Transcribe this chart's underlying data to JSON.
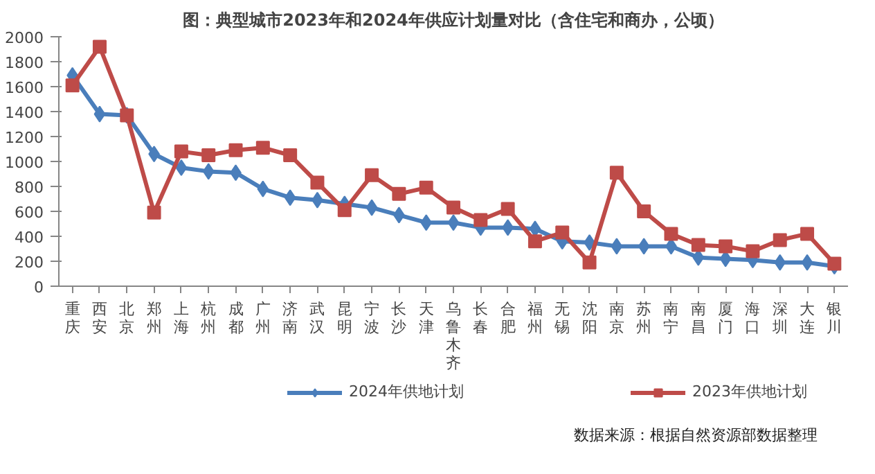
{
  "chart_data": {
    "type": "line",
    "title": "图：典型城市2023年和2024年供应计划量对比（含住宅和商办，公顷）",
    "categories": [
      "重庆",
      "西安",
      "北京",
      "郑州",
      "上海",
      "杭州",
      "成都",
      "广州",
      "济南",
      "武汉",
      "昆明",
      "宁波",
      "长沙",
      "天津",
      "乌鲁木齐",
      "长春",
      "合肥",
      "福州",
      "无锡",
      "沈阳",
      "南京",
      "苏州",
      "南宁",
      "南昌",
      "厦门",
      "海口",
      "深圳",
      "大连",
      "银川"
    ],
    "series": [
      {
        "name": "2024年供地计划",
        "color": "#4a7ebb",
        "marker": "diamond",
        "values": [
          1690,
          1380,
          1370,
          1060,
          950,
          920,
          910,
          780,
          710,
          690,
          660,
          630,
          570,
          510,
          510,
          470,
          470,
          460,
          360,
          350,
          320,
          320,
          320,
          230,
          220,
          210,
          190,
          190,
          160
        ]
      },
      {
        "name": "2023年供地计划",
        "color": "#be4b48",
        "marker": "square",
        "values": [
          1610,
          1920,
          1370,
          590,
          1080,
          1050,
          1090,
          1110,
          1050,
          830,
          610,
          890,
          740,
          790,
          630,
          530,
          620,
          360,
          430,
          190,
          910,
          600,
          420,
          330,
          320,
          280,
          370,
          420,
          180
        ]
      }
    ],
    "ylim": [
      0,
      2000
    ],
    "yticks": [
      0,
      200,
      400,
      600,
      800,
      1000,
      1200,
      1400,
      1600,
      1800,
      2000
    ],
    "grid": false,
    "legend": "bottom",
    "line_style": "solid",
    "annotations": [
      "数据来源：根据自然资源部数据整理"
    ]
  }
}
